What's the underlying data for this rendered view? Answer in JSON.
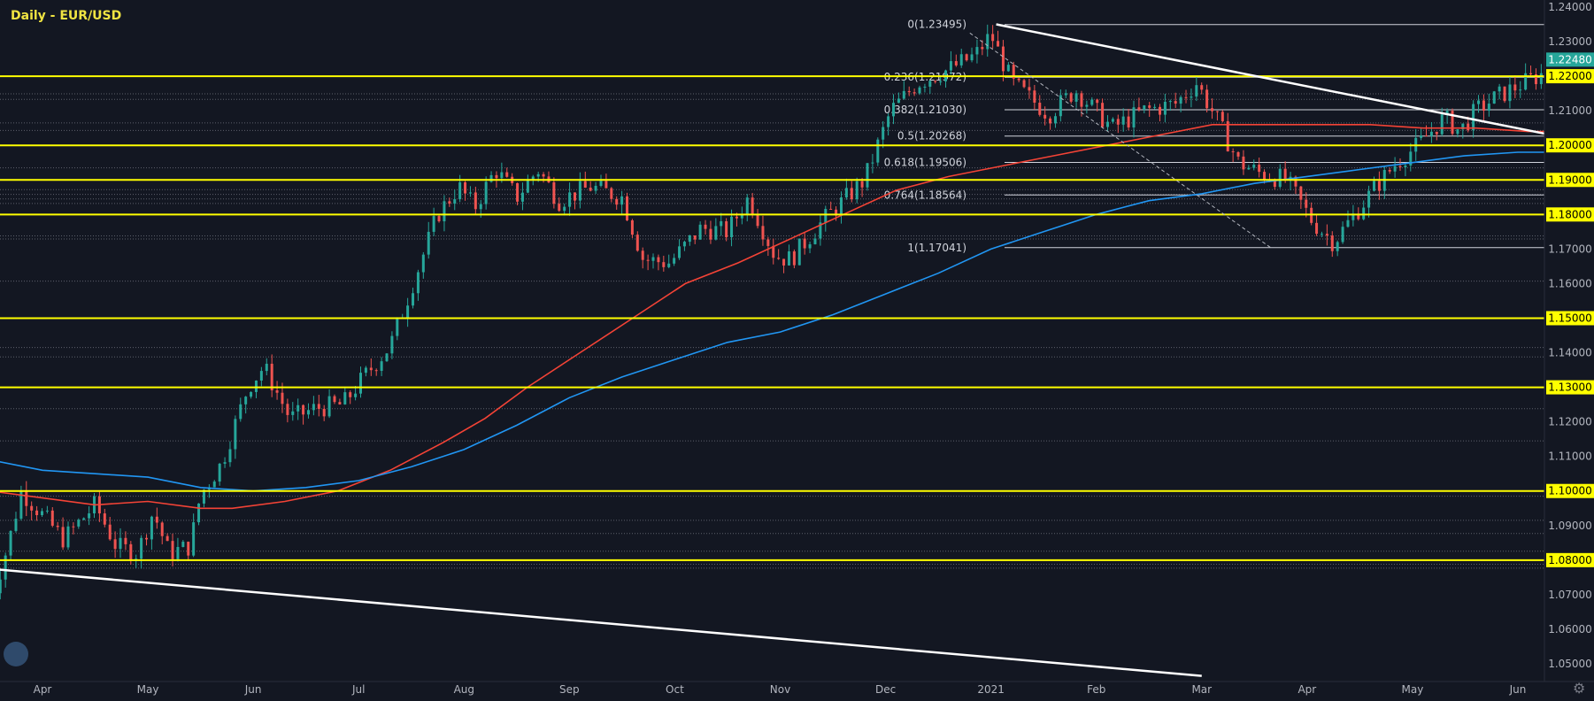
{
  "chart_data": {
    "type": "candlestick",
    "title": "Daily - EUR/USD",
    "xlabel": "",
    "ylabel": "",
    "ylim": [
      1.043,
      1.2405
    ],
    "y_ticks": [
      "1.24000",
      "1.23000",
      "1.22000",
      "1.21000",
      "1.20000",
      "1.19000",
      "1.18000",
      "1.17000",
      "1.16000",
      "1.15000",
      "1.14000",
      "1.13000",
      "1.12000",
      "1.11000",
      "1.10000",
      "1.09000",
      "1.08000",
      "1.07000",
      "1.06000",
      "1.05000"
    ],
    "x_ticks": [
      "Apr",
      "May",
      "Jun",
      "Jul",
      "Aug",
      "Sep",
      "Oct",
      "Nov",
      "Dec",
      "2021",
      "Feb",
      "Mar",
      "Apr",
      "May",
      "Jun"
    ],
    "x_tick_positions": [
      0.5,
      1.5,
      2.5,
      3.5,
      4.5,
      5.5,
      6.5,
      7.5,
      8.5,
      9.5,
      10.5,
      11.5,
      12.5,
      13.5,
      14.5
    ],
    "current_price": "1.22480",
    "current_price_value": 1.2248,
    "horizontal_levels": [
      {
        "label": "1.22000",
        "value": 1.22
      },
      {
        "label": "1.20000",
        "value": 1.2
      },
      {
        "label": "1.19000",
        "value": 1.19
      },
      {
        "label": "1.18000",
        "value": 1.18
      },
      {
        "label": "1.15000",
        "value": 1.15
      },
      {
        "label": "1.13000",
        "value": 1.13
      },
      {
        "label": "1.10000",
        "value": 1.1
      },
      {
        "label": "1.08000",
        "value": 1.08
      }
    ],
    "dotted_levels": [
      1.2149,
      1.2133,
      1.2065,
      1.2043,
      1.1935,
      1.1872,
      1.1858,
      1.1845,
      1.1832,
      1.1738,
      1.1729,
      1.1607,
      1.1415,
      1.1388,
      1.1238,
      1.1145,
      1.0985,
      1.0915,
      1.0877,
      1.0826,
      1.0788,
      1.0777
    ],
    "fibonacci": {
      "high": 1.23495,
      "low": 1.17041,
      "levels": [
        {
          "label": "0(1.23495)",
          "value": 1.23495
        },
        {
          "label": "0.236(1.21972)",
          "value": 1.21972
        },
        {
          "label": "0.382(1.21030)",
          "value": 1.2103
        },
        {
          "label": "0.5(1.20268)",
          "value": 1.20268
        },
        {
          "label": "0.618(1.19506)",
          "value": 1.19506
        },
        {
          "label": "0.764(1.18564)",
          "value": 1.18564
        },
        {
          "label": "1(1.17041)",
          "value": 1.17041
        }
      ]
    },
    "price_path": [
      [
        0,
        1.067
      ],
      [
        0.17,
        1.084
      ],
      [
        0.3,
        1.1
      ],
      [
        0.5,
        1.093
      ],
      [
        0.7,
        1.086
      ],
      [
        1.0,
        1.096
      ],
      [
        1.2,
        1.084
      ],
      [
        1.4,
        1.082
      ],
      [
        1.55,
        1.094
      ],
      [
        1.7,
        1.082
      ],
      [
        1.9,
        1.084
      ],
      [
        2.0,
        1.099
      ],
      [
        2.2,
        1.108
      ],
      [
        2.45,
        1.13
      ],
      [
        2.6,
        1.136
      ],
      [
        2.85,
        1.121
      ],
      [
        3.1,
        1.124
      ],
      [
        3.35,
        1.125
      ],
      [
        3.55,
        1.133
      ],
      [
        3.8,
        1.142
      ],
      [
        4.05,
        1.163
      ],
      [
        4.25,
        1.18
      ],
      [
        4.45,
        1.188
      ],
      [
        4.6,
        1.182
      ],
      [
        4.8,
        1.193
      ],
      [
        5.0,
        1.185
      ],
      [
        5.2,
        1.193
      ],
      [
        5.4,
        1.184
      ],
      [
        5.7,
        1.188
      ],
      [
        6.0,
        1.185
      ],
      [
        6.2,
        1.167
      ],
      [
        6.45,
        1.166
      ],
      [
        6.75,
        1.176
      ],
      [
        7.0,
        1.175
      ],
      [
        7.2,
        1.185
      ],
      [
        7.45,
        1.168
      ],
      [
        7.6,
        1.167
      ],
      [
        7.9,
        1.178
      ],
      [
        8.3,
        1.19
      ],
      [
        8.55,
        1.21
      ],
      [
        8.8,
        1.218
      ],
      [
        9.1,
        1.222
      ],
      [
        9.35,
        1.226
      ],
      [
        9.5,
        1.232
      ],
      [
        9.7,
        1.218
      ],
      [
        10.05,
        1.209
      ],
      [
        10.3,
        1.216
      ],
      [
        10.65,
        1.205
      ],
      [
        10.95,
        1.21
      ],
      [
        11.25,
        1.212
      ],
      [
        11.45,
        1.218
      ],
      [
        11.6,
        1.21
      ],
      [
        11.85,
        1.195
      ],
      [
        12.05,
        1.192
      ],
      [
        12.3,
        1.19
      ],
      [
        12.55,
        1.178
      ],
      [
        12.75,
        1.172
      ],
      [
        12.95,
        1.18
      ],
      [
        13.15,
        1.188
      ],
      [
        13.35,
        1.195
      ],
      [
        13.55,
        1.2
      ],
      [
        13.8,
        1.208
      ],
      [
        13.95,
        1.204
      ],
      [
        14.1,
        1.21
      ],
      [
        14.3,
        1.214
      ],
      [
        14.55,
        1.218
      ],
      [
        14.75,
        1.221
      ],
      [
        14.87,
        1.2248
      ]
    ],
    "ma_200_red": [
      [
        0,
        1.1
      ],
      [
        1.0,
        1.096
      ],
      [
        1.5,
        1.097
      ],
      [
        2.0,
        1.095
      ],
      [
        2.3,
        1.095
      ],
      [
        2.8,
        1.097
      ],
      [
        3.3,
        1.1
      ],
      [
        3.8,
        1.106
      ],
      [
        4.3,
        1.114
      ],
      [
        4.7,
        1.121
      ],
      [
        5.1,
        1.13
      ],
      [
        5.6,
        1.14
      ],
      [
        6.1,
        1.15
      ],
      [
        6.6,
        1.16
      ],
      [
        7.1,
        1.166
      ],
      [
        7.6,
        1.173
      ],
      [
        8.1,
        1.18
      ],
      [
        8.6,
        1.187
      ],
      [
        9.1,
        1.191
      ],
      [
        9.6,
        1.194
      ],
      [
        10.1,
        1.197
      ],
      [
        10.6,
        1.2
      ],
      [
        11.1,
        1.203
      ],
      [
        11.6,
        1.206
      ],
      [
        12.1,
        1.206
      ],
      [
        12.6,
        1.206
      ],
      [
        13.1,
        1.206
      ],
      [
        13.6,
        1.205
      ],
      [
        14.1,
        1.205
      ],
      [
        14.6,
        1.204
      ],
      [
        14.87,
        1.204
      ]
    ],
    "ma_200_blue": [
      [
        0,
        1.109
      ],
      [
        0.5,
        1.106
      ],
      [
        1.0,
        1.105
      ],
      [
        1.5,
        1.104
      ],
      [
        2.0,
        1.101
      ],
      [
        2.5,
        1.1
      ],
      [
        3.0,
        1.101
      ],
      [
        3.5,
        1.103
      ],
      [
        4.0,
        1.107
      ],
      [
        4.5,
        1.112
      ],
      [
        5.0,
        1.119
      ],
      [
        5.5,
        1.127
      ],
      [
        6.0,
        1.133
      ],
      [
        6.5,
        1.138
      ],
      [
        7.0,
        1.143
      ],
      [
        7.5,
        1.146
      ],
      [
        8.0,
        1.151
      ],
      [
        8.5,
        1.157
      ],
      [
        9.0,
        1.163
      ],
      [
        9.5,
        1.17
      ],
      [
        10.0,
        1.175
      ],
      [
        10.5,
        1.18
      ],
      [
        11.0,
        1.184
      ],
      [
        11.5,
        1.186
      ],
      [
        12.0,
        1.189
      ],
      [
        12.5,
        1.191
      ],
      [
        13.0,
        1.193
      ],
      [
        13.5,
        1.195
      ],
      [
        14.0,
        1.197
      ],
      [
        14.5,
        1.198
      ],
      [
        14.87,
        1.198
      ]
    ],
    "trendlines": [
      {
        "name": "upper",
        "points": [
          [
            9.55,
            1.235
          ],
          [
            14.9,
            1.2025
          ]
        ]
      },
      {
        "name": "lower",
        "points": [
          [
            0,
            1.0775
          ],
          [
            11.5,
            1.0465
          ]
        ]
      },
      {
        "name": "fib-diagonal",
        "points": [
          [
            9.3,
            1.2325
          ],
          [
            12.15,
            1.1705
          ]
        ]
      }
    ],
    "grid": false
  },
  "ui": {
    "logo_name": "tradingview-logo-icon",
    "settings_icon": "gear-icon"
  },
  "colors": {
    "background": "#131722",
    "level_line": "#ffff00",
    "bull_candle": "#26a69a",
    "bear_candle": "#ef5350",
    "ma_red": "#f44336",
    "ma_blue": "#2196f3",
    "trendline": "#ffffff",
    "price_tag": "#26a69a",
    "title": "#f0e442"
  }
}
